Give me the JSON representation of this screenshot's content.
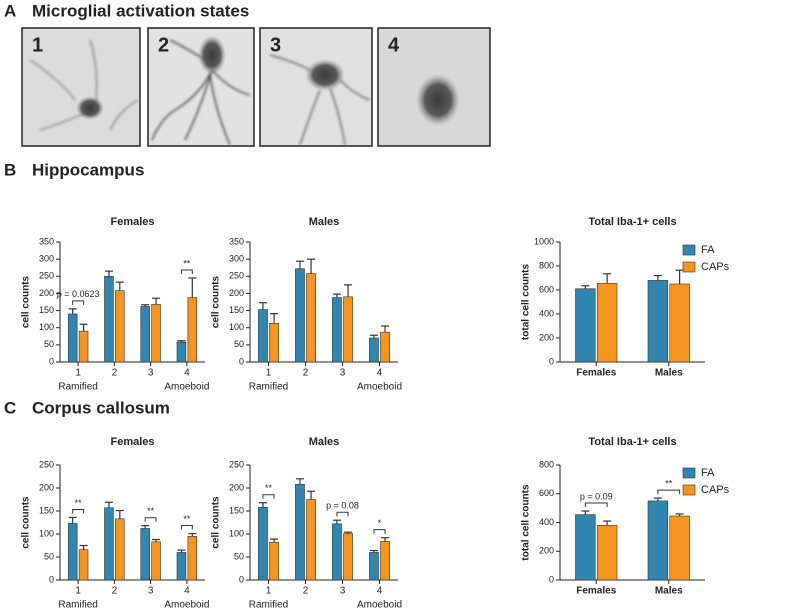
{
  "figure": {
    "panels": [
      {
        "letter": "A",
        "title": "Microglial activation states"
      },
      {
        "letter": "B",
        "title": "Hippocampus"
      },
      {
        "letter": "C",
        "title": "Corpus callosum"
      }
    ],
    "images": [
      {
        "label": "1"
      },
      {
        "label": "2"
      },
      {
        "label": "3"
      },
      {
        "label": "4"
      }
    ]
  },
  "chart_data": [
    {
      "type": "bar",
      "title": "Females",
      "ylabel": "cell counts",
      "categories": [
        "1",
        "2",
        "3",
        "4"
      ],
      "sublabels": [
        "Ramified",
        null,
        null,
        "Amoeboid"
      ],
      "series": [
        {
          "name": "FA",
          "color": "#2e86b1",
          "values": [
            140,
            250,
            162,
            58
          ],
          "errors": [
            15,
            15,
            5,
            4
          ]
        },
        {
          "name": "CAPs",
          "color": "#f7941d",
          "values": [
            90,
            208,
            168,
            188
          ],
          "errors": [
            20,
            25,
            18,
            57
          ]
        }
      ],
      "ylim": [
        0,
        350
      ],
      "yticks": [
        0,
        50,
        100,
        150,
        200,
        250,
        300,
        350
      ],
      "legend": false,
      "annotations": [
        {
          "text": "p = 0.0623",
          "category": "1"
        },
        {
          "text": "**",
          "category": "4"
        }
      ]
    },
    {
      "type": "bar",
      "title": "Males",
      "ylabel": "cell counts",
      "categories": [
        "1",
        "2",
        "3",
        "4"
      ],
      "sublabels": [
        "Ramified",
        null,
        null,
        "Amoeboid"
      ],
      "series": [
        {
          "name": "FA",
          "color": "#2e86b1",
          "values": [
            153,
            272,
            188,
            70
          ],
          "errors": [
            20,
            22,
            10,
            8
          ]
        },
        {
          "name": "CAPs",
          "color": "#f7941d",
          "values": [
            113,
            258,
            190,
            87
          ],
          "errors": [
            28,
            42,
            35,
            18
          ]
        }
      ],
      "ylim": [
        0,
        350
      ],
      "yticks": [
        0,
        50,
        100,
        150,
        200,
        250,
        300,
        350
      ],
      "legend": false,
      "annotations": []
    },
    {
      "type": "bar",
      "title": "Total Iba-1+ cells",
      "ylabel": "total cell counts",
      "categories": [
        "Females",
        "Males"
      ],
      "series": [
        {
          "name": "FA",
          "color": "#2e86b1",
          "values": [
            610,
            680
          ],
          "errors": [
            25,
            40
          ]
        },
        {
          "name": "CAPs",
          "color": "#f7941d",
          "values": [
            655,
            650
          ],
          "errors": [
            80,
            115
          ]
        }
      ],
      "ylim": [
        0,
        1000
      ],
      "yticks": [
        0,
        200,
        400,
        600,
        800,
        1000
      ],
      "legend": true,
      "annotations": []
    },
    {
      "type": "bar",
      "title": "Females",
      "ylabel": "cell counts",
      "categories": [
        "1",
        "2",
        "3",
        "4"
      ],
      "sublabels": [
        "Ramified",
        null,
        null,
        "Amoeboid"
      ],
      "series": [
        {
          "name": "FA",
          "color": "#2e86b1",
          "values": [
            123,
            157,
            112,
            60
          ],
          "errors": [
            13,
            12,
            6,
            5
          ]
        },
        {
          "name": "CAPs",
          "color": "#f7941d",
          "values": [
            66,
            133,
            83,
            95
          ],
          "errors": [
            9,
            18,
            5,
            6
          ]
        }
      ],
      "ylim": [
        0,
        250
      ],
      "yticks": [
        0,
        50,
        100,
        150,
        200,
        250
      ],
      "legend": false,
      "annotations": [
        {
          "text": "**",
          "category": "1"
        },
        {
          "text": "**",
          "category": "3"
        },
        {
          "text": "**",
          "category": "4"
        }
      ]
    },
    {
      "type": "bar",
      "title": "Males",
      "ylabel": "cell counts",
      "categories": [
        "1",
        "2",
        "3",
        "4"
      ],
      "sublabels": [
        "Ramified",
        null,
        null,
        "Amoeboid"
      ],
      "series": [
        {
          "name": "FA",
          "color": "#2e86b1",
          "values": [
            158,
            208,
            122,
            60
          ],
          "errors": [
            10,
            12,
            8,
            4
          ]
        },
        {
          "name": "CAPs",
          "color": "#f7941d",
          "values": [
            82,
            175,
            101,
            84
          ],
          "errors": [
            7,
            18,
            3,
            8
          ]
        }
      ],
      "ylim": [
        0,
        250
      ],
      "yticks": [
        0,
        50,
        100,
        150,
        200,
        250
      ],
      "legend": false,
      "annotations": [
        {
          "text": "**",
          "category": "1"
        },
        {
          "text": "p = 0.08",
          "category": "3"
        },
        {
          "text": "*",
          "category": "4"
        }
      ]
    },
    {
      "type": "bar",
      "title": "Total Iba-1+ cells",
      "ylabel": "total cell counts",
      "categories": [
        "Females",
        "Males"
      ],
      "series": [
        {
          "name": "FA",
          "color": "#2e86b1",
          "values": [
            455,
            550
          ],
          "errors": [
            25,
            20
          ]
        },
        {
          "name": "CAPs",
          "color": "#f7941d",
          "values": [
            380,
            445
          ],
          "errors": [
            30,
            15
          ]
        }
      ],
      "ylim": [
        0,
        800
      ],
      "yticks": [
        0,
        200,
        400,
        600,
        800
      ],
      "legend": true,
      "annotations": [
        {
          "text": "p = 0.09",
          "category": "Females"
        },
        {
          "text": "**",
          "category": "Males"
        }
      ]
    }
  ]
}
